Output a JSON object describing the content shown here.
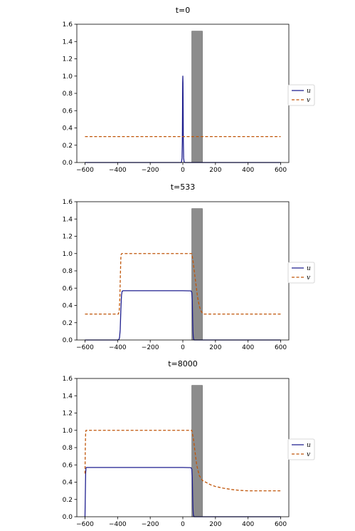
{
  "chart_data": [
    {
      "type": "line",
      "title": "t=0",
      "xlim": [
        -650,
        650
      ],
      "ylim": [
        0,
        1.6
      ],
      "xticks": [
        -600,
        -400,
        -200,
        0,
        200,
        400,
        600
      ],
      "xtick_labels": [
        "−600",
        "−400",
        "−200",
        "0",
        "200",
        "400",
        "600"
      ],
      "yticks": [
        0,
        0.2,
        0.4,
        0.6,
        0.8,
        1.0,
        1.2,
        1.4,
        1.6
      ],
      "ytick_labels": [
        "0.0",
        "0.2",
        "0.4",
        "0.6",
        "0.8",
        "1.0",
        "1.2",
        "1.4",
        "1.6"
      ],
      "obstacle": {
        "x0": 55,
        "x1": 120,
        "height": 1.52,
        "color": "#8c8c8c"
      },
      "legend": {
        "placement": "outside-right",
        "entries": [
          "u",
          "v"
        ]
      },
      "series": [
        {
          "name": "u",
          "style": "solid",
          "color": "#1f1f8f",
          "x": [
            -600,
            -12,
            -8,
            -5,
            -3,
            -2,
            -1,
            0,
            1,
            2,
            3,
            5,
            8,
            12,
            600
          ],
          "y": [
            0,
            0,
            0.005,
            0.05,
            0.25,
            0.6,
            0.92,
            1.0,
            0.92,
            0.6,
            0.25,
            0.05,
            0.005,
            0,
            0
          ]
        },
        {
          "name": "v",
          "style": "dashed",
          "color": "#c0560a",
          "x": [
            -600,
            600
          ],
          "y": [
            0.3,
            0.3
          ]
        }
      ]
    },
    {
      "type": "line",
      "title": "t=533",
      "xlim": [
        -650,
        650
      ],
      "ylim": [
        0,
        1.6
      ],
      "xticks": [
        -600,
        -400,
        -200,
        0,
        200,
        400,
        600
      ],
      "xtick_labels": [
        "−600",
        "−400",
        "−200",
        "0",
        "200",
        "400",
        "600"
      ],
      "yticks": [
        0,
        0.2,
        0.4,
        0.6,
        0.8,
        1.0,
        1.2,
        1.4,
        1.6
      ],
      "ytick_labels": [
        "0.0",
        "0.2",
        "0.4",
        "0.6",
        "0.8",
        "1.0",
        "1.2",
        "1.4",
        "1.6"
      ],
      "obstacle": {
        "x0": 55,
        "x1": 120,
        "height": 1.52,
        "color": "#8c8c8c"
      },
      "legend": {
        "placement": "outside-right",
        "entries": [
          "u",
          "v"
        ]
      },
      "series": [
        {
          "name": "u",
          "style": "solid",
          "color": "#1f1f8f",
          "x": [
            -600,
            -400,
            -392,
            -388,
            -384,
            -380,
            -376,
            -372,
            -365,
            0,
            50,
            55,
            58,
            60,
            62,
            64,
            66,
            70,
            600
          ],
          "y": [
            0,
            0,
            0.005,
            0.03,
            0.12,
            0.35,
            0.52,
            0.565,
            0.57,
            0.57,
            0.568,
            0.55,
            0.45,
            0.25,
            0.1,
            0.03,
            0.01,
            0,
            0
          ]
        },
        {
          "name": "v",
          "style": "dashed",
          "color": "#c0560a",
          "x": [
            -600,
            -395,
            -390,
            -386,
            -383,
            -380,
            -378,
            -375,
            0,
            55,
            62,
            70,
            80,
            90,
            100,
            110,
            120,
            130,
            600
          ],
          "y": [
            0.3,
            0.3,
            0.34,
            0.5,
            0.75,
            0.95,
            0.99,
            1.0,
            1.0,
            1.0,
            0.92,
            0.8,
            0.65,
            0.5,
            0.4,
            0.34,
            0.31,
            0.3,
            0.3
          ]
        }
      ]
    },
    {
      "type": "line",
      "title": "t=8000",
      "xlim": [
        -650,
        650
      ],
      "ylim": [
        0,
        1.6
      ],
      "xticks": [
        -600,
        -400,
        -200,
        0,
        200,
        400,
        600
      ],
      "xtick_labels": [
        "−600",
        "−400",
        "−200",
        "0",
        "200",
        "400",
        "600"
      ],
      "yticks": [
        0,
        0.2,
        0.4,
        0.6,
        0.8,
        1.0,
        1.2,
        1.4,
        1.6
      ],
      "ytick_labels": [
        "0.0",
        "0.2",
        "0.4",
        "0.6",
        "0.8",
        "1.0",
        "1.2",
        "1.4",
        "1.6"
      ],
      "obstacle": {
        "x0": 55,
        "x1": 120,
        "height": 1.52,
        "color": "#8c8c8c"
      },
      "legend": {
        "placement": "outside-right",
        "entries": [
          "u",
          "v"
        ]
      },
      "series": [
        {
          "name": "u",
          "style": "solid",
          "color": "#1f1f8f",
          "x": [
            -600,
            -598,
            -596,
            -594,
            -592,
            -590,
            0,
            50,
            55,
            58,
            60,
            62,
            64,
            66,
            70,
            600
          ],
          "y": [
            0,
            0.25,
            0.5,
            0.56,
            0.57,
            0.57,
            0.57,
            0.568,
            0.55,
            0.45,
            0.25,
            0.1,
            0.03,
            0.01,
            0,
            0
          ]
        },
        {
          "name": "v",
          "style": "dashed",
          "color": "#c0560a",
          "x": [
            -600,
            -598,
            -596,
            -594,
            -592,
            0,
            55,
            65,
            75,
            85,
            100,
            120,
            140,
            170,
            200,
            250,
            300,
            350,
            400,
            500,
            600
          ],
          "y": [
            0.5,
            0.8,
            0.97,
            1.0,
            1.0,
            1.0,
            1.0,
            0.9,
            0.75,
            0.6,
            0.48,
            0.42,
            0.4,
            0.37,
            0.35,
            0.33,
            0.315,
            0.305,
            0.3,
            0.3,
            0.3
          ]
        }
      ]
    }
  ]
}
